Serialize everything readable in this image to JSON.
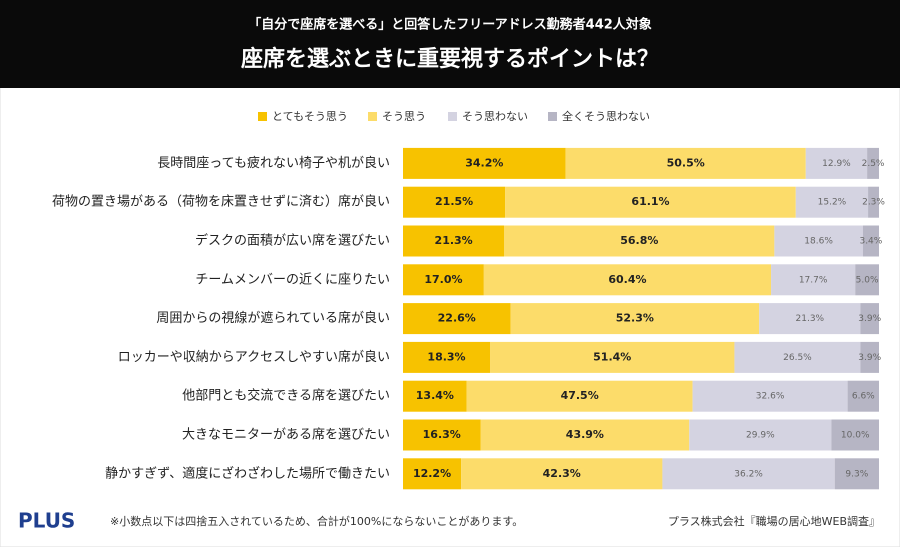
{
  "chart_data": {
    "type": "stacked-bar-horizontal",
    "subtitle": "「自分で座席を選べる」と回答したフリーアドレス勤務者442人対象",
    "title": "座席を選ぶときに重要視するポイントは？",
    "categories": [
      "長時間座っても疲れない椅子や机が良い",
      "荷物の置き場がある（荷物を床置きせずに済む）席が良い",
      "デスクの面積が広い席を選びたい",
      "チームメンバーの近くに座りたい",
      "周囲からの視線が遮られている席が良い",
      "ロッカーや収納からアクセスしやすい席が良い",
      "他部門とも交流できる席を選びたい",
      "大きなモニターがある席を選びたい",
      "静かすぎず、適度にざわざわした場所で働きたい"
    ],
    "series": [
      {
        "name": "とてもそう思う",
        "color": "#f7c200",
        "values": [
          34.2,
          21.5,
          21.3,
          17.0,
          22.6,
          18.3,
          13.4,
          16.3,
          12.2
        ],
        "value_labels": [
          "34.2%",
          "21.5%",
          "21.3%",
          "17.0%",
          "22.6%",
          "18.3%",
          "13.4%",
          "16.3%",
          "12.2%"
        ]
      },
      {
        "name": "そう思う",
        "color": "#fcdc6a",
        "values": [
          50.5,
          61.1,
          56.8,
          60.4,
          52.3,
          51.4,
          47.5,
          43.9,
          42.3
        ],
        "value_labels": [
          "50.5%",
          "61.1%",
          "56.8%",
          "60.4%",
          "52.3%",
          "51.4%",
          "47.5%",
          "43.9%",
          "42.3%"
        ]
      },
      {
        "name": "そう思わない",
        "color": "#d4d3e1",
        "values": [
          12.9,
          15.2,
          18.6,
          17.7,
          21.3,
          26.5,
          32.6,
          29.9,
          36.2
        ],
        "value_labels": [
          "12.9%",
          "15.2%",
          "18.6%",
          "17.7%",
          "21.3%",
          "26.5%",
          "32.6%",
          "29.9%",
          "36.2%"
        ]
      },
      {
        "name": "全くそう思わない",
        "color": "#b6b5c4",
        "values": [
          2.5,
          2.3,
          3.4,
          5.0,
          3.9,
          3.9,
          6.6,
          10.0,
          9.3
        ],
        "value_labels": [
          "2.5%",
          "2.3%",
          "3.4%",
          "5.0%",
          "3.9%",
          "3.9%",
          "6.6%",
          "10.0%",
          "9.3%"
        ]
      }
    ],
    "logo": "PLUS",
    "note": "※小数点以下は四捨五入されているため、合計が100%にならないことがあります。",
    "source": "プラス株式会社『職場の居心地WEB調査』"
  }
}
